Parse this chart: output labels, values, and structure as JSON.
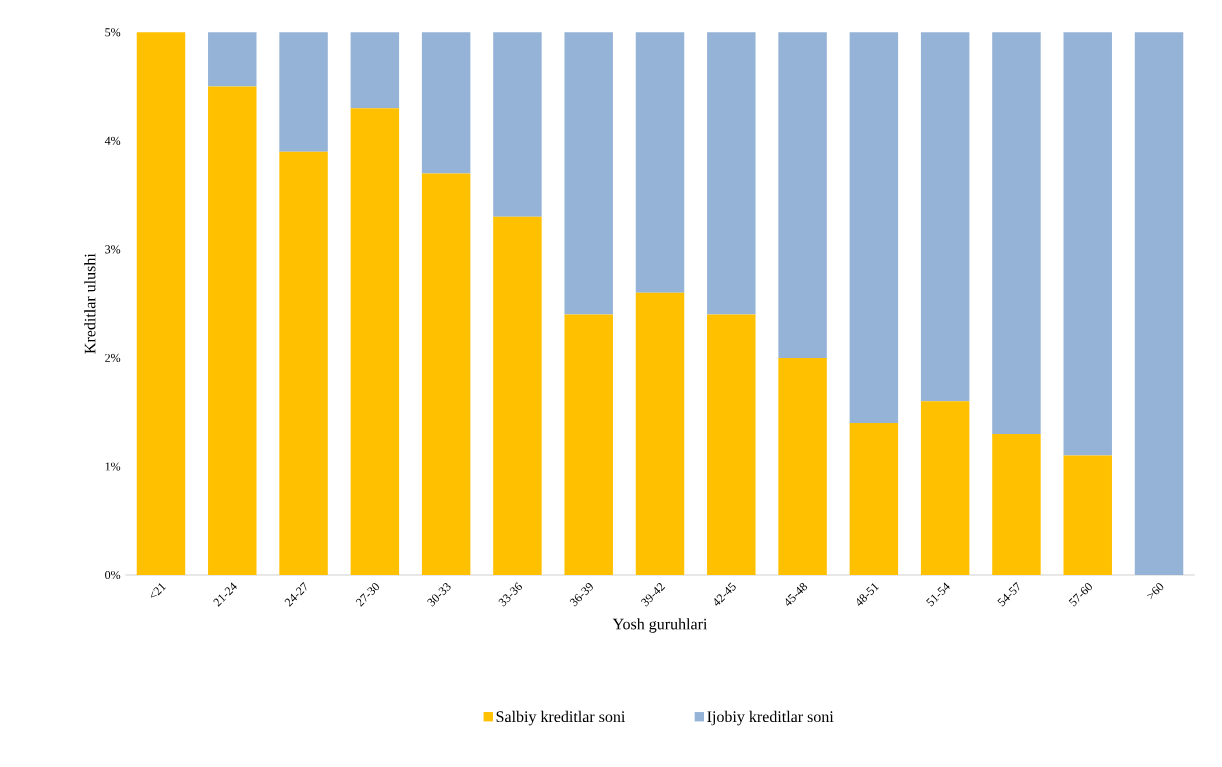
{
  "chart_data": {
    "type": "bar",
    "stacked": true,
    "xlabel": "Yosh guruhlari",
    "ylabel": "Kreditlar ulushi",
    "categories": [
      "<21",
      "21-24",
      "24-27",
      "27-30",
      "30-33",
      "33-36",
      "36-39",
      "39-42",
      "42-45",
      "45-48",
      "48-51",
      "51-54",
      "54-57",
      "57-60",
      ">60"
    ],
    "series": [
      {
        "name": "Salbiy kreditlar soni",
        "color": "#ffc000",
        "values": [
          5.0,
          4.5,
          3.9,
          4.3,
          3.7,
          3.3,
          2.4,
          2.6,
          2.4,
          2.0,
          1.4,
          1.6,
          1.3,
          1.1,
          0
        ]
      },
      {
        "name": "Ijobiy kreditlar soni",
        "color": "#95b3d7",
        "values": [
          0,
          0.5,
          1.1,
          0.7,
          1.3,
          1.7,
          2.6,
          2.4,
          2.6,
          3.0,
          3.6,
          3.4,
          3.7,
          3.9,
          5.0
        ]
      }
    ],
    "ylim": [
      0,
      5
    ],
    "yticks": [
      {
        "value": 0,
        "label": "0%"
      },
      {
        "value": 1,
        "label": "1%"
      },
      {
        "value": 2,
        "label": "2%"
      },
      {
        "value": 3,
        "label": "3%"
      },
      {
        "value": 4,
        "label": "4%"
      },
      {
        "value": 5,
        "label": "5%"
      }
    ],
    "legend": "bottom"
  }
}
